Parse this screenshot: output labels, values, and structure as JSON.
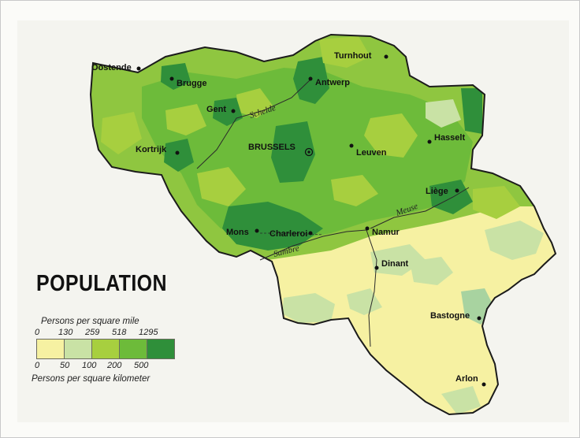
{
  "map": {
    "title": "POPULATION",
    "legend": {
      "top_caption": "Persons per square mile",
      "bottom_caption": "Persons per square kilometer",
      "mile_ticks": [
        "0",
        "130",
        "259",
        "518",
        "1295"
      ],
      "km_ticks": [
        "0",
        "50",
        "100",
        "200",
        "500"
      ],
      "classes": [
        {
          "color": "#f6f1a2"
        },
        {
          "color": "#c9e2a5"
        },
        {
          "color": "#a7cf3f"
        },
        {
          "color": "#6dbb3a"
        },
        {
          "color": "#2f8f3a"
        }
      ]
    },
    "cities": [
      {
        "name": "Oostende"
      },
      {
        "name": "Brugge"
      },
      {
        "name": "Gent"
      },
      {
        "name": "Kortrijk"
      },
      {
        "name": "Turnhout"
      },
      {
        "name": "Antwerp"
      },
      {
        "name": "BRUSSELS"
      },
      {
        "name": "Leuven"
      },
      {
        "name": "Hasselt"
      },
      {
        "name": "Liège"
      },
      {
        "name": "Mons"
      },
      {
        "name": "Charleroi"
      },
      {
        "name": "Namur"
      },
      {
        "name": "Dinant"
      },
      {
        "name": "Bastogne"
      },
      {
        "name": "Arlon"
      }
    ],
    "rivers": [
      {
        "name": "Schelde"
      },
      {
        "name": "Meuse"
      },
      {
        "name": "Sambre"
      }
    ]
  }
}
